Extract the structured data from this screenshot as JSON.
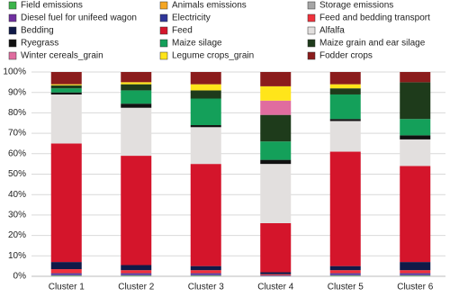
{
  "chart_data": {
    "type": "stacked_bar",
    "categories": [
      "Cluster 1",
      "Cluster 2",
      "Cluster 3",
      "Cluster 4",
      "Cluster 5",
      "Cluster 6"
    ],
    "ylim": [
      0,
      100
    ],
    "yticks": [
      {
        "value": 0,
        "label": "0%"
      },
      {
        "value": 10,
        "label": "10%"
      },
      {
        "value": 20,
        "label": "20%"
      },
      {
        "value": 30,
        "label": "30%"
      },
      {
        "value": 40,
        "label": "40%"
      },
      {
        "value": 50,
        "label": "50%"
      },
      {
        "value": 60,
        "label": "60%"
      },
      {
        "value": 70,
        "label": "70%"
      },
      {
        "value": 80,
        "label": "80%"
      },
      {
        "value": 90,
        "label": "90%"
      },
      {
        "value": 100,
        "label": "100%"
      }
    ],
    "grid": true,
    "series": [
      {
        "name": "Field emissions",
        "color": "#3cb44b",
        "values": [
          0.5,
          0.5,
          0.5,
          0,
          0.5,
          0.5
        ]
      },
      {
        "name": "Animals emissions",
        "color": "#f5a623",
        "values": [
          0,
          0,
          0,
          0,
          0,
          0
        ]
      },
      {
        "name": "Storage emissions",
        "color": "#a6a6a6",
        "values": [
          0,
          0,
          0,
          0,
          0,
          0
        ]
      },
      {
        "name": "Diesel fuel for unifeed wagon",
        "color": "#7030a0",
        "values": [
          0.5,
          0.5,
          0.5,
          0,
          0.5,
          0.5
        ]
      },
      {
        "name": "Electricity",
        "color": "#2f3699",
        "values": [
          0.5,
          0.5,
          0.5,
          0.5,
          0.5,
          0.5
        ]
      },
      {
        "name": "Feed and bedding transport",
        "color": "#f0323c",
        "values": [
          2,
          1.5,
          1.5,
          0.5,
          1.5,
          1.5
        ]
      },
      {
        "name": "Bedding",
        "color": "#101a48",
        "values": [
          3.5,
          2.5,
          2,
          1,
          2,
          4
        ]
      },
      {
        "name": "Feed",
        "color": "#d4152b",
        "values": [
          58,
          53.5,
          50,
          24,
          56,
          47
        ]
      },
      {
        "name": "Alfalfa",
        "color": "#e2dfde",
        "values": [
          24,
          23.5,
          18,
          29,
          15,
          13
        ]
      },
      {
        "name": "Ryegrass",
        "color": "#111111",
        "values": [
          1,
          2,
          1,
          2,
          1,
          2
        ]
      },
      {
        "name": "Maize silage",
        "color": "#14a05a",
        "values": [
          2,
          6.5,
          13,
          9,
          12,
          8
        ]
      },
      {
        "name": "Maize grain and ear silage",
        "color": "#1e3b1b",
        "values": [
          1.5,
          3,
          4,
          13,
          3,
          18
        ]
      },
      {
        "name": "Winter cereals_grain",
        "color": "#e06c9f",
        "values": [
          0,
          0,
          0,
          7,
          0,
          0
        ]
      },
      {
        "name": "Legume crops_grain",
        "color": "#ffe51a",
        "values": [
          0.5,
          1,
          3,
          7,
          2,
          0
        ]
      },
      {
        "name": "Fodder crops",
        "color": "#8b1c1c",
        "values": [
          6,
          5,
          6,
          7,
          6,
          5
        ]
      }
    ]
  }
}
